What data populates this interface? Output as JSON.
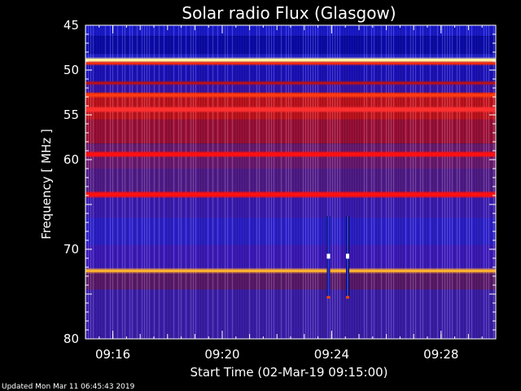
{
  "chart_data": {
    "type": "heatmap",
    "title": "Solar radio Flux (Glasgow)",
    "xlabel": "Start Time (02-Mar-19 09:15:00)",
    "ylabel_text": "Frequency",
    "ylabel_unit": "MHz",
    "x_range": [
      "09:15:00",
      "09:30:00"
    ],
    "ylim": [
      45,
      80
    ],
    "y_axis_direction": "top-to-bottom",
    "x_ticks": [
      "09:16",
      "09:20",
      "09:24",
      "09:28"
    ],
    "y_ticks": [
      45,
      50,
      55,
      60,
      70,
      80
    ],
    "colormap": "blue-red-white (intensity)",
    "background_intensity": [
      {
        "from": 45.0,
        "to": 46.2,
        "color": "#1a1acc"
      },
      {
        "from": 46.2,
        "to": 48.2,
        "color": "#0c0caa"
      },
      {
        "from": 48.2,
        "to": 49.2,
        "color": "#2020d0"
      },
      {
        "from": 49.2,
        "to": 51.5,
        "color": "#1c12b8"
      },
      {
        "from": 51.5,
        "to": 52.5,
        "color": "#3a14a8"
      },
      {
        "from": 52.5,
        "to": 55.5,
        "color": "#c0141e"
      },
      {
        "from": 55.5,
        "to": 58.2,
        "color": "#9a1038"
      },
      {
        "from": 58.2,
        "to": 61.0,
        "color": "#6a1a70"
      },
      {
        "from": 61.0,
        "to": 64.0,
        "color": "#501c88"
      },
      {
        "from": 64.0,
        "to": 66.5,
        "color": "#3a1cb0"
      },
      {
        "from": 66.5,
        "to": 69.5,
        "color": "#2c20c8"
      },
      {
        "from": 69.5,
        "to": 72.5,
        "color": "#3c1ab8"
      },
      {
        "from": 72.5,
        "to": 74.5,
        "color": "#5a1a6a"
      },
      {
        "from": 74.5,
        "to": 80.0,
        "color": "#3a1ea8"
      }
    ],
    "bright_lines": [
      {
        "freq": 48.9,
        "color": "#fff0a0",
        "width_mhz": 0.35
      },
      {
        "freq": 49.25,
        "color": "#ff2a00",
        "width_mhz": 0.2
      },
      {
        "freq": 51.45,
        "color": "#c01010",
        "width_mhz": 0.2
      },
      {
        "freq": 52.8,
        "color": "#ff3a10",
        "width_mhz": 0.3
      },
      {
        "freq": 54.4,
        "color": "#ff3030",
        "width_mhz": 0.4
      },
      {
        "freq": 59.4,
        "color": "#ff1010",
        "width_mhz": 0.4
      },
      {
        "freq": 63.9,
        "color": "#ff1010",
        "width_mhz": 0.45
      },
      {
        "freq": 72.4,
        "color": "#ffb030",
        "width_mhz": 0.3
      }
    ],
    "bursts": [
      {
        "time": "09:23:53",
        "freq_from": 66.3,
        "freq_to": 75.5
      },
      {
        "time": "09:24:35",
        "freq_from": 66.3,
        "freq_to": 75.5
      }
    ]
  },
  "footer": {
    "updated_text": "Updated Mon Mar 11 06:45:43 2019"
  },
  "colors": {
    "background": "#000000",
    "text": "#ffffff",
    "axis": "#ffffff"
  }
}
